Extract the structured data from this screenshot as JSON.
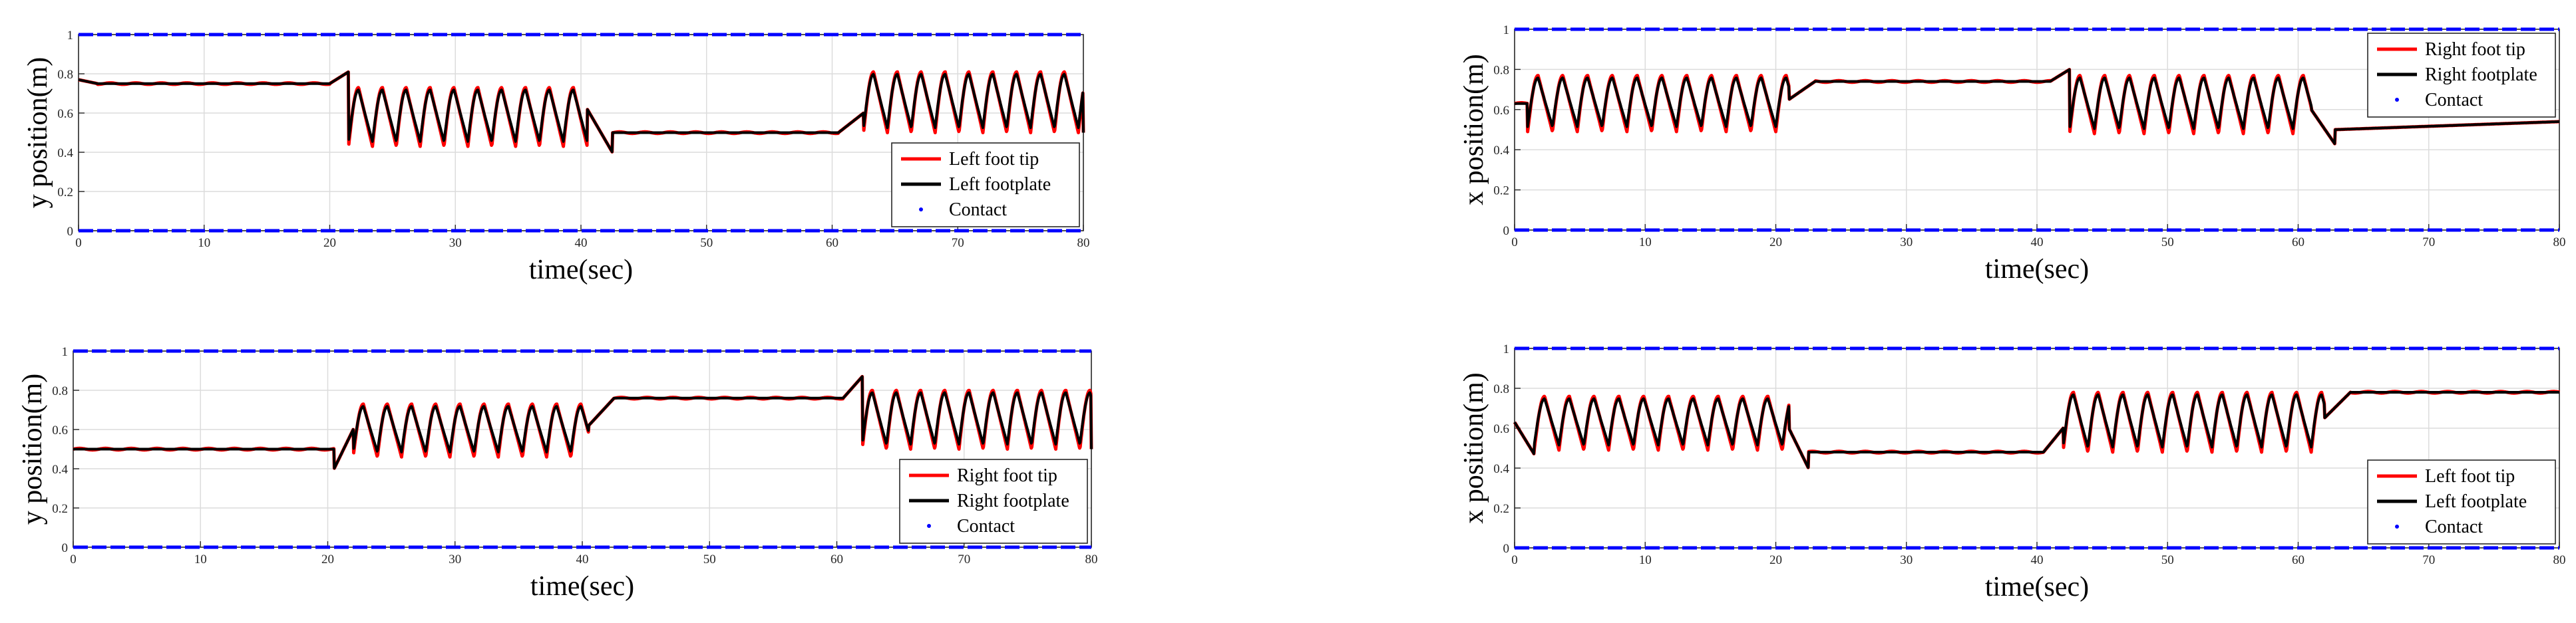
{
  "figure": {
    "panels": [
      {
        "id": "top-left",
        "xlabel": "time(sec)",
        "ylabel": "y position(m)",
        "legend": [
          "Left foot tip",
          "Left footplate",
          "Contact"
        ]
      },
      {
        "id": "top-right",
        "xlabel": "time(sec)",
        "ylabel": "x position(m)",
        "legend": [
          "Right foot tip",
          "Right footplate",
          "Contact"
        ]
      },
      {
        "id": "bottom-left",
        "xlabel": "time(sec)",
        "ylabel": "y position(m)",
        "legend": [
          "Right foot tip",
          "Right footplate",
          "Contact"
        ]
      },
      {
        "id": "bottom-right",
        "xlabel": "time(sec)",
        "ylabel": "x position(m)",
        "legend": [
          "Left foot tip",
          "Left footplate",
          "Contact"
        ]
      }
    ]
  },
  "chart_data": [
    {
      "type": "line",
      "panel": "top-left",
      "xlabel": "time(sec)",
      "ylabel": "y position(m)",
      "xlim": [
        0,
        80
      ],
      "ylim": [
        0,
        1
      ],
      "xticks": [
        "0",
        "10",
        "20",
        "30",
        "40",
        "50",
        "60",
        "70",
        "80"
      ],
      "yticks": [
        "0",
        "0.2",
        "0.4",
        "0.6",
        "0.8",
        "1"
      ],
      "grid": true,
      "legend_position": "bottom-right",
      "segments": [
        {
          "t0": 0,
          "t1": 1.5,
          "kind": "ramp",
          "from": 0.77,
          "to": 0.75
        },
        {
          "t0": 1.5,
          "t1": 20,
          "kind": "flat",
          "level": 0.75
        },
        {
          "t0": 20,
          "t1": 21.5,
          "kind": "ramp",
          "from": 0.75,
          "to": 0.81
        },
        {
          "t0": 21.5,
          "t1": 40.5,
          "kind": "osc",
          "period": 1.9,
          "min": 0.43,
          "max": 0.73
        },
        {
          "t0": 40.5,
          "t1": 42.5,
          "kind": "ramp",
          "from": 0.62,
          "to": 0.4
        },
        {
          "t0": 42.5,
          "t1": 60.5,
          "kind": "flat",
          "level": 0.5
        },
        {
          "t0": 60.5,
          "t1": 62.5,
          "kind": "ramp",
          "from": 0.5,
          "to": 0.6
        },
        {
          "t0": 62.5,
          "t1": 80,
          "kind": "osc",
          "period": 1.9,
          "min": 0.5,
          "max": 0.81
        }
      ],
      "series": [
        {
          "name": "Left foot tip",
          "color": "#ff0000",
          "role": "tip"
        },
        {
          "name": "Left footplate",
          "color": "#000000",
          "role": "plate"
        },
        {
          "name": "Contact",
          "color": "#0000ff",
          "role": "contact",
          "levels": [
            0,
            1
          ]
        }
      ]
    },
    {
      "type": "line",
      "panel": "top-right",
      "xlabel": "time(sec)",
      "ylabel": "x position(m)",
      "xlim": [
        0,
        80
      ],
      "ylim": [
        0,
        1
      ],
      "xticks": [
        "0",
        "10",
        "20",
        "30",
        "40",
        "50",
        "60",
        "70",
        "80"
      ],
      "yticks": [
        "0",
        "0.2",
        "0.4",
        "0.6",
        "0.8",
        "1"
      ],
      "grid": true,
      "legend_position": "top-right",
      "segments": [
        {
          "t0": 0,
          "t1": 1,
          "kind": "flat",
          "level": 0.63
        },
        {
          "t0": 1,
          "t1": 21,
          "kind": "osc",
          "period": 1.9,
          "min": 0.49,
          "max": 0.77
        },
        {
          "t0": 21,
          "t1": 23,
          "kind": "ramp",
          "from": 0.65,
          "to": 0.74
        },
        {
          "t0": 23,
          "t1": 41,
          "kind": "flat",
          "level": 0.74
        },
        {
          "t0": 41,
          "t1": 42.5,
          "kind": "ramp",
          "from": 0.74,
          "to": 0.8
        },
        {
          "t0": 42.5,
          "t1": 61,
          "kind": "osc",
          "period": 1.9,
          "min": 0.48,
          "max": 0.77
        },
        {
          "t0": 61,
          "t1": 62.8,
          "kind": "ramp",
          "from": 0.6,
          "to": 0.43
        },
        {
          "t0": 62.8,
          "t1": 80,
          "kind": "ramp",
          "from": 0.5,
          "to": 0.54
        }
      ],
      "series": [
        {
          "name": "Right foot tip",
          "color": "#ff0000",
          "role": "tip"
        },
        {
          "name": "Right footplate",
          "color": "#000000",
          "role": "plate"
        },
        {
          "name": "Contact",
          "color": "#0000ff",
          "role": "contact",
          "levels": [
            0,
            1
          ]
        }
      ]
    },
    {
      "type": "line",
      "panel": "bottom-left",
      "xlabel": "time(sec)",
      "ylabel": "y position(m)",
      "xlim": [
        0,
        80
      ],
      "ylim": [
        0,
        1
      ],
      "xticks": [
        "0",
        "10",
        "20",
        "30",
        "40",
        "50",
        "60",
        "70",
        "80"
      ],
      "yticks": [
        "0",
        "0.2",
        "0.4",
        "0.6",
        "0.8",
        "1"
      ],
      "grid": true,
      "legend_position": "bottom-right",
      "segments": [
        {
          "t0": 0,
          "t1": 20.5,
          "kind": "flat",
          "level": 0.5
        },
        {
          "t0": 20.5,
          "t1": 22,
          "kind": "ramp",
          "from": 0.4,
          "to": 0.6
        },
        {
          "t0": 22,
          "t1": 40.5,
          "kind": "osc",
          "period": 1.9,
          "min": 0.46,
          "max": 0.73
        },
        {
          "t0": 40.5,
          "t1": 42.5,
          "kind": "ramp",
          "from": 0.62,
          "to": 0.76
        },
        {
          "t0": 42.5,
          "t1": 60.5,
          "kind": "flat",
          "level": 0.76
        },
        {
          "t0": 60.5,
          "t1": 62,
          "kind": "ramp",
          "from": 0.76,
          "to": 0.87
        },
        {
          "t0": 62,
          "t1": 80,
          "kind": "osc",
          "period": 1.9,
          "min": 0.5,
          "max": 0.8
        }
      ],
      "series": [
        {
          "name": "Right foot tip",
          "color": "#ff0000",
          "role": "tip"
        },
        {
          "name": "Right footplate",
          "color": "#000000",
          "role": "plate"
        },
        {
          "name": "Contact",
          "color": "#0000ff",
          "role": "contact",
          "levels": [
            0,
            1
          ]
        }
      ]
    },
    {
      "type": "line",
      "panel": "bottom-right",
      "xlabel": "time(sec)",
      "ylabel": "x position(m)",
      "xlim": [
        0,
        80
      ],
      "ylim": [
        0,
        1
      ],
      "xticks": [
        "0",
        "10",
        "20",
        "30",
        "40",
        "50",
        "60",
        "70",
        "80"
      ],
      "yticks": [
        "0",
        "0.2",
        "0.4",
        "0.6",
        "0.8",
        "1"
      ],
      "grid": true,
      "legend_position": "bottom-right",
      "segments": [
        {
          "t0": 0,
          "t1": 1.5,
          "kind": "ramp",
          "from": 0.63,
          "to": 0.47
        },
        {
          "t0": 1.5,
          "t1": 21,
          "kind": "osc",
          "period": 1.9,
          "min": 0.49,
          "max": 0.76
        },
        {
          "t0": 21,
          "t1": 22.5,
          "kind": "ramp",
          "from": 0.6,
          "to": 0.4
        },
        {
          "t0": 22.5,
          "t1": 40.5,
          "kind": "flat",
          "level": 0.48
        },
        {
          "t0": 40.5,
          "t1": 42,
          "kind": "ramp",
          "from": 0.48,
          "to": 0.6
        },
        {
          "t0": 42,
          "t1": 62,
          "kind": "osc",
          "period": 1.9,
          "min": 0.48,
          "max": 0.78
        },
        {
          "t0": 62,
          "t1": 64,
          "kind": "ramp",
          "from": 0.65,
          "to": 0.78
        },
        {
          "t0": 64,
          "t1": 80,
          "kind": "flat",
          "level": 0.78
        }
      ],
      "series": [
        {
          "name": "Left foot tip",
          "color": "#ff0000",
          "role": "tip"
        },
        {
          "name": "Left footplate",
          "color": "#000000",
          "role": "plate"
        },
        {
          "name": "Contact",
          "color": "#0000ff",
          "role": "contact",
          "levels": [
            0,
            1
          ]
        }
      ]
    }
  ]
}
